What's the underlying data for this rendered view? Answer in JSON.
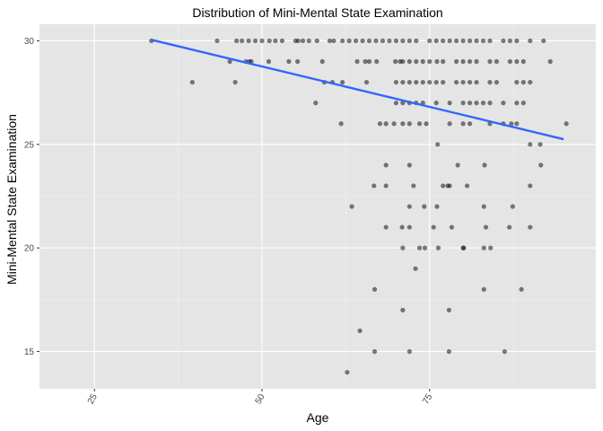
{
  "chart_data": {
    "type": "scatter",
    "title": "Distribution of Mini-Mental State Examination",
    "xlabel": "Age",
    "ylabel": "Mini-Mental State Examination",
    "xlim": [
      16.8,
      99.8
    ],
    "ylim": [
      13.2,
      30.8
    ],
    "x_ticks": [
      25,
      50,
      75
    ],
    "y_ticks": [
      15,
      20,
      25,
      30
    ],
    "x_tick_rotation": -60,
    "grid": true,
    "colors": {
      "panel_background": "#e5e5e5",
      "grid_major": "#ffffff",
      "grid_minor": "#f0f0f0",
      "points": "#000000",
      "trend_line": "#3366ff"
    },
    "point_alpha": 0.5,
    "trend_line": {
      "method": "linear",
      "x": [
        33.5,
        95.0
      ],
      "y": [
        30.05,
        25.25
      ]
    },
    "points": [
      [
        33.5,
        30
      ],
      [
        43.3,
        30
      ],
      [
        45.2,
        29
      ],
      [
        46.2,
        30
      ],
      [
        47.0,
        30
      ],
      [
        47.6,
        29
      ],
      [
        48.0,
        30
      ],
      [
        48.4,
        29
      ],
      [
        49.0,
        30
      ],
      [
        50.0,
        30
      ],
      [
        51.1,
        30
      ],
      [
        52.0,
        30
      ],
      [
        53.0,
        30
      ],
      [
        55.0,
        30
      ],
      [
        55.4,
        30
      ],
      [
        56.1,
        30
      ],
      [
        57.0,
        30
      ],
      [
        58.2,
        30
      ],
      [
        60.1,
        30
      ],
      [
        60.7,
        30
      ],
      [
        62.0,
        30
      ],
      [
        63.0,
        30
      ],
      [
        64.0,
        30
      ],
      [
        65.0,
        30
      ],
      [
        66.0,
        30
      ],
      [
        67.0,
        30
      ],
      [
        68.0,
        30
      ],
      [
        69.0,
        30
      ],
      [
        70.0,
        30
      ],
      [
        71.0,
        30
      ],
      [
        72.0,
        30
      ],
      [
        73.0,
        30
      ],
      [
        75.0,
        30
      ],
      [
        76.0,
        30
      ],
      [
        77.0,
        30
      ],
      [
        78.0,
        30
      ],
      [
        79.0,
        30
      ],
      [
        80.0,
        30
      ],
      [
        81.0,
        30
      ],
      [
        82.0,
        30
      ],
      [
        83.0,
        30
      ],
      [
        84.0,
        30
      ],
      [
        86.0,
        30
      ],
      [
        87.0,
        30
      ],
      [
        88.0,
        30
      ],
      [
        90.0,
        30
      ],
      [
        92.0,
        30
      ],
      [
        46.0,
        28
      ],
      [
        48.1,
        29
      ],
      [
        51.0,
        29
      ],
      [
        54.0,
        29
      ],
      [
        55.3,
        29
      ],
      [
        59.0,
        29
      ],
      [
        64.2,
        29
      ],
      [
        65.4,
        29
      ],
      [
        66.0,
        29
      ],
      [
        67.1,
        29
      ],
      [
        69.9,
        29
      ],
      [
        70.6,
        29
      ],
      [
        71.0,
        29
      ],
      [
        72.0,
        29
      ],
      [
        73.0,
        29
      ],
      [
        74.0,
        29
      ],
      [
        75.0,
        29
      ],
      [
        76.1,
        29
      ],
      [
        77.0,
        29
      ],
      [
        79.0,
        29
      ],
      [
        80.0,
        29
      ],
      [
        81.0,
        29
      ],
      [
        82.0,
        29
      ],
      [
        84.0,
        29
      ],
      [
        85.0,
        29
      ],
      [
        87.0,
        29
      ],
      [
        88.0,
        29
      ],
      [
        89.0,
        29
      ],
      [
        93.0,
        29
      ],
      [
        39.6,
        28
      ],
      [
        59.3,
        28
      ],
      [
        60.5,
        28
      ],
      [
        62.0,
        28
      ],
      [
        65.6,
        28
      ],
      [
        70.0,
        28
      ],
      [
        71.0,
        28
      ],
      [
        72.0,
        28
      ],
      [
        73.0,
        28
      ],
      [
        74.0,
        28
      ],
      [
        75.0,
        28
      ],
      [
        76.0,
        28
      ],
      [
        77.0,
        28
      ],
      [
        79.0,
        28
      ],
      [
        80.0,
        28
      ],
      [
        81.0,
        28
      ],
      [
        82.0,
        28
      ],
      [
        84.0,
        28
      ],
      [
        85.0,
        28
      ],
      [
        88.0,
        28
      ],
      [
        89.0,
        28
      ],
      [
        90.0,
        28
      ],
      [
        58.0,
        27
      ],
      [
        70.0,
        27
      ],
      [
        71.0,
        27
      ],
      [
        72.0,
        27
      ],
      [
        73.0,
        27
      ],
      [
        74.0,
        27
      ],
      [
        76.0,
        27
      ],
      [
        78.0,
        27
      ],
      [
        80.0,
        27
      ],
      [
        81.0,
        27
      ],
      [
        82.0,
        27
      ],
      [
        83.0,
        27
      ],
      [
        84.0,
        27
      ],
      [
        86.0,
        27
      ],
      [
        88.0,
        27
      ],
      [
        89.0,
        27
      ],
      [
        61.8,
        26
      ],
      [
        67.6,
        26
      ],
      [
        68.5,
        26
      ],
      [
        69.7,
        26
      ],
      [
        71.0,
        26
      ],
      [
        72.0,
        26
      ],
      [
        73.5,
        26
      ],
      [
        74.5,
        26
      ],
      [
        78.0,
        26
      ],
      [
        80.0,
        26
      ],
      [
        81.0,
        26
      ],
      [
        84.0,
        26
      ],
      [
        86.0,
        26
      ],
      [
        87.2,
        26
      ],
      [
        88.0,
        26
      ],
      [
        95.4,
        26
      ],
      [
        76.2,
        25
      ],
      [
        90.0,
        25
      ],
      [
        91.5,
        25
      ],
      [
        68.5,
        24
      ],
      [
        72.0,
        24
      ],
      [
        79.2,
        24
      ],
      [
        83.2,
        24
      ],
      [
        91.6,
        24
      ],
      [
        66.7,
        23
      ],
      [
        68.5,
        23
      ],
      [
        72.6,
        23
      ],
      [
        77.0,
        23
      ],
      [
        77.7,
        23
      ],
      [
        78.0,
        23
      ],
      [
        80.6,
        23
      ],
      [
        90.0,
        23
      ],
      [
        63.4,
        22
      ],
      [
        72.0,
        22
      ],
      [
        74.2,
        22
      ],
      [
        76.1,
        22
      ],
      [
        83.1,
        22
      ],
      [
        87.4,
        22
      ],
      [
        68.5,
        21
      ],
      [
        70.9,
        21
      ],
      [
        72.0,
        21
      ],
      [
        75.6,
        21
      ],
      [
        78.3,
        21
      ],
      [
        83.4,
        21
      ],
      [
        86.9,
        21
      ],
      [
        90.0,
        21
      ],
      [
        71.0,
        20
      ],
      [
        73.5,
        20
      ],
      [
        74.3,
        20
      ],
      [
        76.3,
        20
      ],
      [
        80.0,
        20
      ],
      [
        80.1,
        20
      ],
      [
        83.1,
        20
      ],
      [
        84.1,
        20
      ],
      [
        72.9,
        19
      ],
      [
        66.8,
        18
      ],
      [
        83.1,
        18
      ],
      [
        88.7,
        18
      ],
      [
        71.0,
        17
      ],
      [
        77.9,
        17
      ],
      [
        64.6,
        16
      ],
      [
        66.8,
        15
      ],
      [
        72.0,
        15
      ],
      [
        77.9,
        15
      ],
      [
        86.2,
        15
      ],
      [
        62.7,
        14
      ]
    ]
  }
}
